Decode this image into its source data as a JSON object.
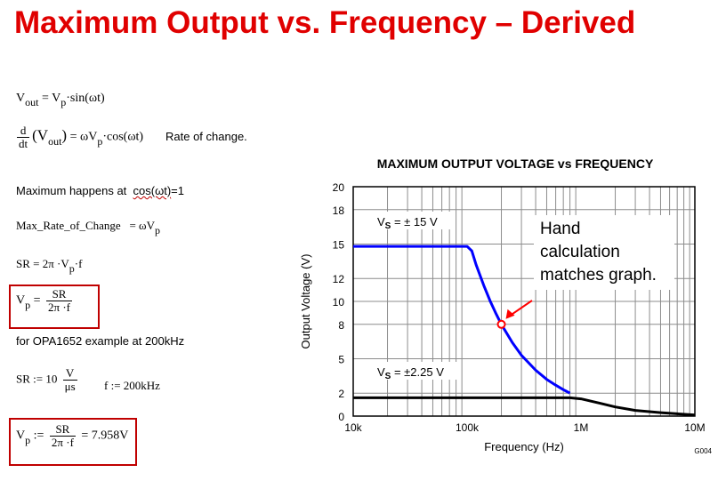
{
  "slide_title": "Maximum Output vs. Frequency – Derived",
  "equations": {
    "vout_lhs": "V",
    "vout_sub": "out",
    "vout_rhs_a": "= V",
    "vout_rhs_p": "p",
    "vout_rhs_b": "·sin(ωt)",
    "deriv_num": "d",
    "deriv_den": "dt",
    "deriv_open": "(V",
    "deriv_sub": "out",
    "deriv_close": ")",
    "deriv_rhs_a": "= ωV",
    "deriv_rhs_p": "p",
    "deriv_rhs_b": "·cos(ωt)",
    "deriv_note": "Rate of change.",
    "max_happens": "Maximum happens at",
    "max_cos": "cos(ωt)",
    "max_eq": "=1",
    "max_rate_lhs": "Max_Rate_of_Change",
    "max_rate_rhs": "= ωV",
    "max_rate_p": "p",
    "sr_a": "SR = 2π ·V",
    "sr_p": "p",
    "sr_b": "·f",
    "vp_lhs": "V",
    "vp_sub": "p",
    "vp_eq": "=",
    "vp_num": "SR",
    "vp_den": "2π ·f",
    "example": "for OPA1652 example at 200kHz",
    "srdef_a": "SR := 10",
    "srdef_num": "V",
    "srdef_den": "μs",
    "fdef": "f := 200kHz",
    "vpres_lhs": "V",
    "vpres_sub": "p",
    "vpres_assign": ":=",
    "vpres_num": "SR",
    "vpres_den": "2π ·f",
    "vpres_result": "= 7.958V"
  },
  "chart_data": {
    "type": "line",
    "title": "MAXIMUM OUTPUT VOLTAGE vs FREQUENCY",
    "xlabel": "Frequency (Hz)",
    "ylabel": "Output Voltage (V)",
    "x_scale": "log",
    "xlim": [
      10000,
      10000000
    ],
    "ylim": [
      0,
      20
    ],
    "xticks": [
      10000,
      100000,
      1000000,
      10000000
    ],
    "xtick_labels": [
      "10k",
      "100k",
      "1M",
      "10M"
    ],
    "yticks": [
      0,
      2,
      5,
      8,
      10,
      12,
      15,
      18,
      20
    ],
    "ytick_labels": [
      "0",
      "2",
      "5",
      "8",
      "10",
      "12",
      "15",
      "18",
      "20"
    ],
    "grid": true,
    "series": [
      {
        "name": "V_S = ±15 V",
        "color": "#0000ff",
        "x": [
          10000,
          20000,
          50000,
          100000,
          110000,
          120000,
          140000,
          160000,
          180000,
          200000,
          250000,
          300000,
          400000,
          500000,
          600000,
          700000,
          800000
        ],
        "y": [
          14.8,
          14.8,
          14.8,
          14.8,
          14.4,
          13.2,
          11.4,
          10.0,
          8.9,
          8.0,
          6.4,
          5.3,
          4.0,
          3.2,
          2.7,
          2.3,
          2.0
        ]
      },
      {
        "name": "V_S = ±2.25 V",
        "color": "#000000",
        "x": [
          10000,
          100000,
          500000,
          800000,
          1000000,
          1500000,
          2000000,
          3000000,
          5000000,
          7000000,
          10000000
        ],
        "y": [
          1.6,
          1.6,
          1.6,
          1.6,
          1.5,
          1.1,
          0.8,
          0.5,
          0.3,
          0.2,
          0.1
        ]
      }
    ],
    "legend": [
      {
        "v": "V",
        "s": "S",
        "rest": " = ± 15 V"
      },
      {
        "v": "V",
        "s": "S",
        "rest": " = ±2.25 V"
      }
    ],
    "annotation": {
      "lines": [
        "Hand",
        "calculation",
        "matches graph."
      ],
      "point": {
        "x": 200000,
        "y": 8.0
      },
      "arrow_color": "#ff0000"
    },
    "figure_code": "G004"
  }
}
